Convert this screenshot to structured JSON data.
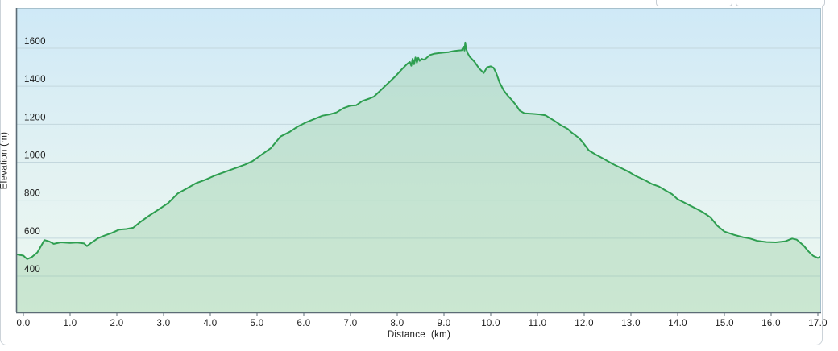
{
  "page": {
    "background": "#ffffff"
  },
  "toolbar": {
    "note": "two partially visible buttons cropped at top edge, no visible labels",
    "buttons": [
      {
        "id": "left-stub"
      },
      {
        "id": "right-stub"
      }
    ]
  },
  "chart_data": {
    "type": "area",
    "title": "",
    "xlabel": "Distance  (km)",
    "ylabel": "Elevation (m)",
    "x_ticks": [
      "0.0",
      "1.0",
      "2.0",
      "3.0",
      "4.0",
      "5.0",
      "6.0",
      "7.0",
      "8.0",
      "9.0",
      "10.0",
      "11.0",
      "12.0",
      "13.0",
      "14.0",
      "15.0",
      "16.0",
      "17.0"
    ],
    "y_ticks": [
      400,
      600,
      800,
      1000,
      1200,
      1400,
      1600
    ],
    "xlim": [
      -0.16,
      17.1
    ],
    "ylim": [
      210,
      1810
    ],
    "grid": true,
    "legend": false,
    "colors": {
      "line": "#2e9e50",
      "fill": "rgba(150,206,163,0.40)",
      "grid": "#c3d7dd",
      "axis": "#5c6c76",
      "plot_border": "#a6c0cc",
      "bg_top": "#cfe9f7",
      "bg_mid": "#e3f2f2",
      "bg_bottom": "#eef8f0",
      "text": "#1b1b1b"
    },
    "series": [
      {
        "name": "elevation",
        "x": [
          -0.15,
          0.0,
          0.08,
          0.18,
          0.3,
          0.45,
          0.55,
          0.65,
          0.8,
          1.0,
          1.15,
          1.3,
          1.36,
          1.45,
          1.6,
          1.75,
          1.9,
          2.05,
          2.2,
          2.35,
          2.5,
          2.7,
          2.9,
          3.1,
          3.3,
          3.5,
          3.7,
          3.9,
          4.1,
          4.3,
          4.55,
          4.75,
          4.9,
          5.1,
          5.3,
          5.5,
          5.7,
          5.85,
          6.05,
          6.2,
          6.4,
          6.55,
          6.7,
          6.85,
          7.0,
          7.12,
          7.25,
          7.4,
          7.5,
          7.65,
          7.8,
          7.95,
          8.1,
          8.22,
          8.27,
          8.3,
          8.33,
          8.36,
          8.39,
          8.42,
          8.45,
          8.48,
          8.52,
          8.57,
          8.62,
          8.7,
          8.8,
          8.9,
          9.0,
          9.1,
          9.2,
          9.3,
          9.38,
          9.42,
          9.44,
          9.455,
          9.47,
          9.5,
          9.55,
          9.65,
          9.75,
          9.85,
          9.92,
          10.0,
          10.06,
          10.12,
          10.19,
          10.28,
          10.36,
          10.45,
          10.55,
          10.62,
          10.72,
          10.9,
          11.05,
          11.17,
          11.35,
          11.5,
          11.65,
          11.72,
          11.9,
          12.0,
          12.1,
          12.25,
          12.4,
          12.6,
          12.8,
          12.95,
          13.1,
          13.3,
          13.45,
          13.6,
          13.75,
          13.88,
          14.0,
          14.2,
          14.4,
          14.55,
          14.7,
          14.85,
          15.0,
          15.2,
          15.4,
          15.55,
          15.7,
          15.9,
          16.1,
          16.3,
          16.45,
          16.55,
          16.7,
          16.8,
          16.9,
          17.0,
          17.07
        ],
        "y": [
          515,
          508,
          490,
          500,
          525,
          590,
          583,
          570,
          578,
          575,
          577,
          572,
          558,
          575,
          600,
          615,
          628,
          645,
          648,
          655,
          685,
          720,
          752,
          785,
          835,
          862,
          890,
          908,
          930,
          948,
          970,
          988,
          1005,
          1040,
          1075,
          1135,
          1160,
          1185,
          1210,
          1225,
          1245,
          1252,
          1262,
          1285,
          1298,
          1300,
          1322,
          1335,
          1345,
          1380,
          1415,
          1450,
          1490,
          1520,
          1528,
          1508,
          1545,
          1516,
          1552,
          1524,
          1550,
          1534,
          1545,
          1540,
          1548,
          1565,
          1572,
          1575,
          1578,
          1580,
          1585,
          1588,
          1590,
          1608,
          1588,
          1630,
          1602,
          1578,
          1556,
          1530,
          1495,
          1470,
          1500,
          1505,
          1498,
          1468,
          1420,
          1378,
          1352,
          1328,
          1298,
          1272,
          1258,
          1255,
          1252,
          1247,
          1220,
          1195,
          1175,
          1158,
          1125,
          1095,
          1062,
          1040,
          1020,
          992,
          968,
          950,
          928,
          905,
          885,
          872,
          850,
          832,
          805,
          780,
          755,
          735,
          710,
          665,
          635,
          618,
          605,
          598,
          586,
          580,
          578,
          583,
          598,
          592,
          560,
          530,
          507,
          496,
          503
        ]
      }
    ]
  }
}
